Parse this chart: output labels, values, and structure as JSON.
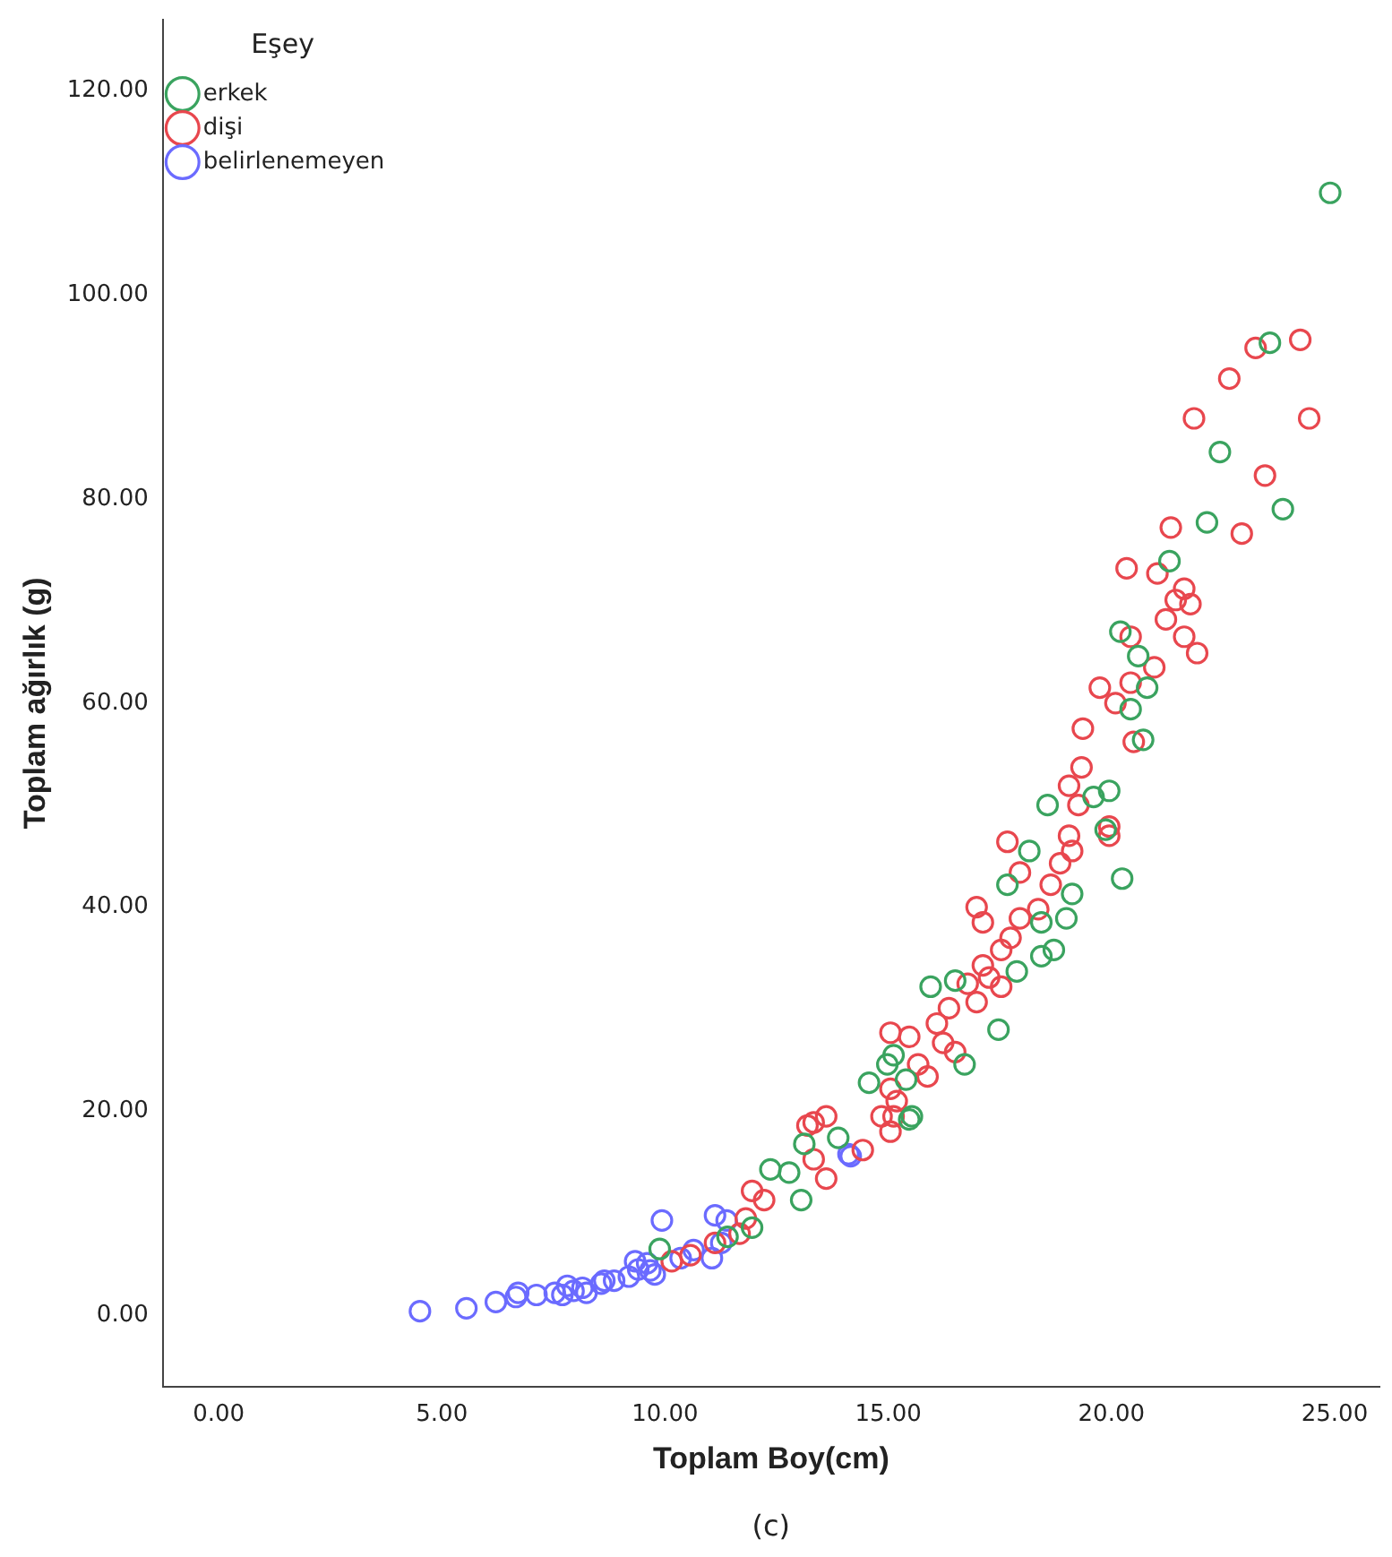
{
  "chart_data": {
    "type": "scatter",
    "xlabel": "Toplam Boy(cm)",
    "ylabel": "Toplam ağırlık (g)",
    "legend_title": "Eşey",
    "legend": "top left",
    "marker": "circle",
    "grid": false,
    "xlim": [
      -1.25,
      26
    ],
    "ylim": [
      -7,
      127
    ],
    "xticks": [
      {
        "value": 0,
        "label": "0.00"
      },
      {
        "value": 5,
        "label": "5.00"
      },
      {
        "value": 10,
        "label": "10.00"
      },
      {
        "value": 15,
        "label": "15.00"
      },
      {
        "value": 20,
        "label": "20.00"
      },
      {
        "value": 25,
        "label": "25.00"
      }
    ],
    "yticks": [
      {
        "value": 0,
        "label": "0.00"
      },
      {
        "value": 20,
        "label": "20.00"
      },
      {
        "value": 40,
        "label": "40.00"
      },
      {
        "value": 60,
        "label": "60.00"
      },
      {
        "value": 80,
        "label": "80.00"
      },
      {
        "value": 100,
        "label": "100.00"
      },
      {
        "value": 120,
        "label": "120.00"
      }
    ],
    "annotations": [
      "(c)"
    ],
    "series": [
      {
        "name": "erkek",
        "color": "#3aa35f",
        "x": [
          24.9,
          23.55,
          22.43,
          22.14,
          23.84,
          21.3,
          20.2,
          20.6,
          20.8,
          20.43,
          20.71,
          19.95,
          19.87,
          20.24,
          18.57,
          19.6,
          18.16,
          17.67,
          19.12,
          18.43,
          18.99,
          18.71,
          18.43,
          17.88,
          15.95,
          16.5,
          17.47,
          16.71,
          15.12,
          14.57,
          15.4,
          15.47,
          13.12,
          14.98,
          15.53,
          12.36,
          12.78,
          13.05,
          13.88,
          11.4,
          9.88,
          11.95
        ],
        "values": [
          110.0,
          95.3,
          84.6,
          77.7,
          79.0,
          73.9,
          67.0,
          64.6,
          61.5,
          59.4,
          56.4,
          51.4,
          47.6,
          42.8,
          50.0,
          50.8,
          45.5,
          42.2,
          41.3,
          38.5,
          38.9,
          35.8,
          35.2,
          33.7,
          32.2,
          32.8,
          28.0,
          24.6,
          25.5,
          22.8,
          23.1,
          19.2,
          16.8,
          24.6,
          19.5,
          14.3,
          14.0,
          11.3,
          17.4,
          7.7,
          6.5,
          8.6
        ]
      },
      {
        "name": "dişi",
        "color": "#e8474e",
        "x": [
          24.23,
          23.23,
          22.64,
          21.85,
          24.43,
          23.44,
          22.92,
          21.33,
          20.34,
          21.03,
          21.63,
          21.44,
          21.77,
          21.22,
          21.63,
          21.92,
          20.43,
          20.96,
          19.74,
          20.43,
          20.09,
          19.36,
          20.5,
          19.33,
          19.05,
          19.26,
          19.95,
          19.95,
          19.05,
          19.12,
          17.67,
          17.95,
          18.64,
          18.85,
          16.98,
          17.12,
          18.36,
          17.95,
          17.74,
          17.53,
          17.12,
          17.26,
          17.53,
          16.78,
          16.98,
          16.36,
          16.09,
          15.05,
          15.47,
          16.23,
          16.5,
          15.67,
          15.88,
          15.05,
          15.19,
          14.85,
          15.05,
          13.19,
          13.61,
          13.33,
          13.33,
          13.61,
          14.43,
          15.12,
          11.95,
          12.22,
          11.81,
          11.12,
          10.57,
          10.15,
          11.67
        ],
        "values": [
          95.6,
          94.8,
          91.8,
          87.9,
          87.9,
          82.3,
          76.6,
          77.2,
          73.2,
          72.7,
          71.2,
          70.1,
          69.7,
          68.2,
          66.5,
          64.9,
          66.5,
          63.5,
          61.5,
          62.0,
          60.0,
          57.5,
          56.2,
          53.7,
          51.9,
          50.0,
          47.9,
          47.0,
          47.0,
          45.5,
          46.4,
          43.4,
          42.2,
          44.3,
          40.0,
          38.5,
          39.8,
          38.9,
          37.0,
          35.8,
          34.3,
          33.1,
          32.2,
          32.5,
          30.7,
          30.1,
          28.6,
          27.7,
          27.3,
          26.7,
          25.8,
          24.6,
          23.4,
          22.2,
          21.0,
          19.5,
          18.0,
          18.6,
          19.5,
          18.9,
          15.3,
          13.4,
          16.2,
          19.5,
          12.2,
          11.3,
          9.5,
          7.1,
          5.9,
          5.3,
          8.0
        ]
      },
      {
        "name": "belirlenemeyen",
        "color": "#6b6bff",
        "x": [
          4.51,
          5.55,
          6.21,
          6.66,
          7.12,
          7.53,
          7.95,
          8.15,
          8.57,
          8.86,
          9.19,
          9.4,
          9.6,
          9.77,
          10.1,
          10.35,
          10.64,
          11.05,
          11.26,
          11.38,
          9.93,
          11.55,
          14.11,
          7.7,
          8.24,
          6.71,
          7.81,
          8.64,
          9.33,
          9.67,
          10.43,
          11.12,
          11.53,
          14.16
        ],
        "values": [
          0.4,
          0.7,
          1.3,
          1.8,
          2.0,
          2.2,
          2.4,
          2.7,
          3.1,
          3.4,
          3.8,
          4.5,
          5.1,
          4.0,
          null,
          5.6,
          6.4,
          5.6,
          7.1,
          9.3,
          9.3,
          null,
          15.8,
          2.0,
          2.2,
          2.2,
          2.9,
          3.4,
          5.3,
          4.4,
          null,
          9.8,
          null,
          15.6
        ]
      }
    ]
  }
}
